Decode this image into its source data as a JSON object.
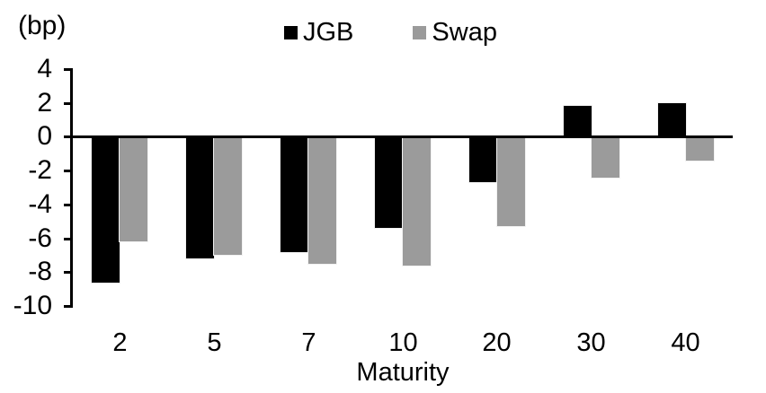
{
  "unit_label": "(bp)",
  "chart_data": {
    "type": "bar",
    "title": "",
    "categories": [
      "2",
      "5",
      "7",
      "10",
      "20",
      "30",
      "40"
    ],
    "series": [
      {
        "name": "JGB",
        "color": "#000000",
        "values": [
          -8.6,
          -7.2,
          -6.8,
          -5.4,
          -2.7,
          1.8,
          2.0
        ]
      },
      {
        "name": "Swap",
        "color": "#9B9B9B",
        "values": [
          -6.2,
          -7.0,
          -7.5,
          -7.6,
          -5.3,
          -2.4,
          -1.4
        ]
      }
    ],
    "xlabel": "Maturity",
    "ylabel": "(bp)",
    "y_ticks": [
      4,
      2,
      0,
      -2,
      -4,
      -6,
      -8,
      -10
    ],
    "ylim": [
      -10,
      4
    ],
    "legend_position": "top-center",
    "grid": false,
    "axis_color": "#000000",
    "background_color": "#ffffff"
  }
}
